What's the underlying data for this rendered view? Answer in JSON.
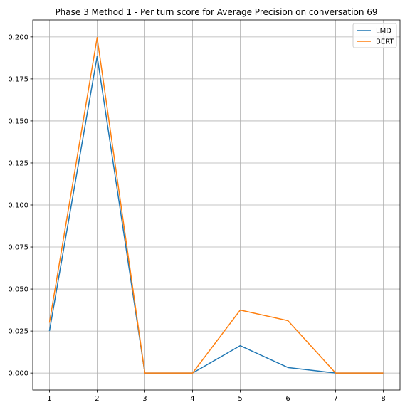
{
  "chart_data": {
    "type": "line",
    "title": "Phase 3 Method 1 - Per turn score for Average Precision on conversation 69",
    "xlabel": "",
    "ylabel": "",
    "x": [
      1,
      2,
      3,
      4,
      5,
      6,
      7,
      8
    ],
    "xlim": [
      0.65,
      8.35
    ],
    "ylim": [
      -0.0101,
      0.2101
    ],
    "x_ticks": [
      "1",
      "2",
      "3",
      "4",
      "5",
      "6",
      "7",
      "8"
    ],
    "y_ticks": [
      "0.000",
      "0.025",
      "0.050",
      "0.075",
      "0.100",
      "0.125",
      "0.150",
      "0.175",
      "0.200"
    ],
    "grid": true,
    "legend_placement": "top-right",
    "series": [
      {
        "name": "LMD",
        "color": "#1f77b4",
        "values": [
          0.025,
          0.1885,
          0.0,
          0.0,
          0.0163,
          0.0033,
          0.0,
          0.0
        ]
      },
      {
        "name": "BERT",
        "color": "#ff7f0e",
        "values": [
          0.03,
          0.1996,
          0.0,
          0.0,
          0.0375,
          0.0312,
          0.0,
          0.0
        ]
      }
    ]
  }
}
